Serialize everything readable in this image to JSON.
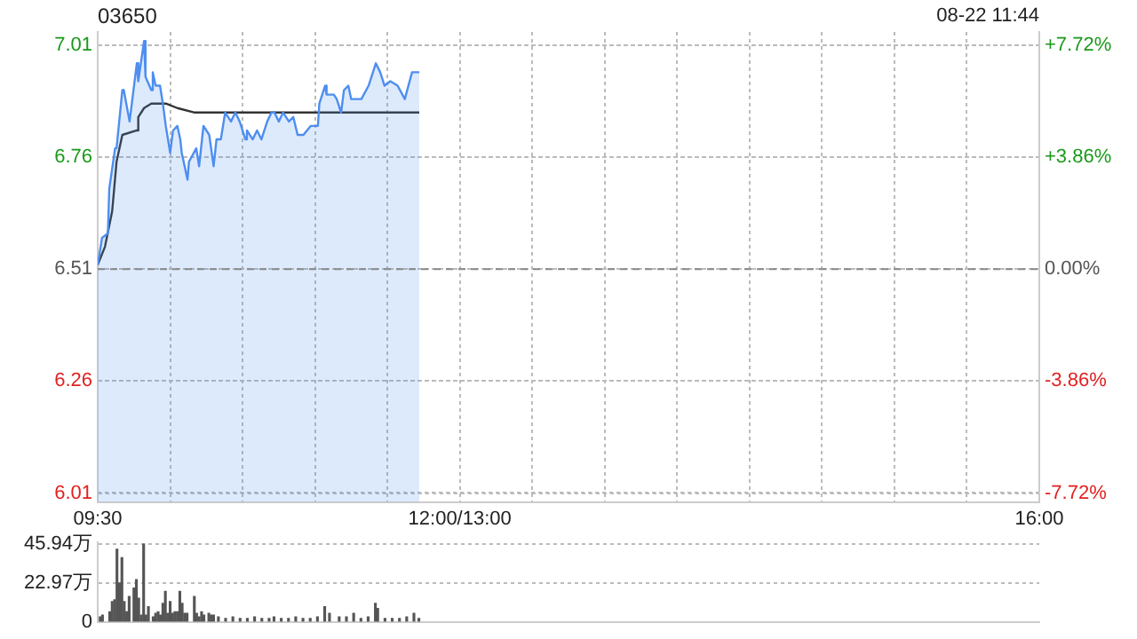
{
  "chart_data": [
    {
      "type": "area",
      "title": "03650",
      "annotations": [
        "08-22 11:44"
      ],
      "marker": "none",
      "legend": false,
      "grid": true,
      "xlim": [
        9.5,
        16
      ],
      "xticks": [
        {
          "value": 9.5,
          "label": "09:30"
        },
        {
          "value": 10,
          "label": null
        },
        {
          "value": 10.5,
          "label": null
        },
        {
          "value": 11,
          "label": null
        },
        {
          "value": 11.5,
          "label": null
        },
        {
          "value": 12,
          "label": "12:00/13:00"
        },
        {
          "value": 12.5,
          "label": null
        },
        {
          "value": 13,
          "label": null
        },
        {
          "value": 13.5,
          "label": null
        },
        {
          "value": 14,
          "label": null
        },
        {
          "value": 14.5,
          "label": null
        },
        {
          "value": 15,
          "label": null
        },
        {
          "value": 15.5,
          "label": null
        },
        {
          "value": 16,
          "label": "16:00"
        }
      ],
      "ylim": [
        5.99,
        7.04
      ],
      "yticks": [
        6.01,
        6.26,
        6.51,
        6.76,
        7.01
      ],
      "y2lim": [
        -8.03,
        8.18
      ],
      "y2ticks": [
        {
          "value": -7.72,
          "label": "-7.72%"
        },
        {
          "value": -3.86,
          "label": "-3.86%"
        },
        {
          "value": 0,
          "label": "0.00%"
        },
        {
          "value": 3.86,
          "label": "+3.86%"
        },
        {
          "value": 7.72,
          "label": "+7.72%"
        }
      ],
      "ref_lines": [
        {
          "axis": "y",
          "value": 6.51,
          "color": "#888888",
          "line_style": "dashed"
        }
      ],
      "series": [
        {
          "color": "#4d8ef0",
          "x": [
            9.5,
            9.53,
            9.57,
            9.58,
            9.62,
            9.63,
            9.67,
            9.68,
            9.72,
            9.77,
            9.78,
            9.82,
            9.83,
            9.87,
            9.88,
            9.9,
            9.93,
            9.95,
            9.97,
            10,
            10.02,
            10.05,
            10.07,
            10.08,
            10.12,
            10.13,
            10.18,
            10.2,
            10.23,
            10.27,
            10.3,
            10.32,
            10.35,
            10.38,
            10.42,
            10.45,
            10.48,
            10.52,
            10.53,
            10.57,
            10.6,
            10.63,
            10.67,
            10.7,
            10.72,
            10.75,
            10.78,
            10.82,
            10.85,
            10.88,
            10.92,
            10.97,
            11.02,
            11.03,
            11.07,
            11.08,
            11.13,
            11.15,
            11.18,
            11.2,
            11.23,
            11.25,
            11.32,
            11.37,
            11.42,
            11.45,
            11.48,
            11.52,
            11.57,
            11.62,
            11.67,
            11.72
          ],
          "values": [
            6.52,
            6.58,
            6.59,
            6.69,
            6.78,
            6.78,
            6.91,
            6.91,
            6.84,
            6.97,
            6.93,
            7.02,
            6.94,
            6.91,
            6.95,
            6.92,
            6.92,
            6.88,
            6.83,
            6.77,
            6.82,
            6.83,
            6.8,
            6.77,
            6.71,
            6.75,
            6.78,
            6.74,
            6.83,
            6.81,
            6.74,
            6.8,
            6.8,
            6.86,
            6.84,
            6.86,
            6.84,
            6.8,
            6.82,
            6.8,
            6.82,
            6.8,
            6.84,
            6.86,
            6.86,
            6.84,
            6.86,
            6.84,
            6.85,
            6.81,
            6.81,
            6.83,
            6.83,
            6.88,
            6.92,
            6.9,
            6.9,
            6.89,
            6.86,
            6.91,
            6.92,
            6.89,
            6.89,
            6.92,
            6.97,
            6.95,
            6.92,
            6.93,
            6.92,
            6.89,
            6.95,
            6.95
          ]
        },
        {
          "type": "line",
          "color": "#333333",
          "x": [
            9.5,
            9.55,
            9.6,
            9.63,
            9.67,
            9.77,
            9.78,
            9.82,
            9.87,
            9.97,
            10.05,
            10.17,
            10.38,
            10.83,
            11.02,
            11.33,
            11.45,
            11.72
          ],
          "values": [
            6.52,
            6.56,
            6.64,
            6.75,
            6.81,
            6.82,
            6.85,
            6.87,
            6.88,
            6.88,
            6.87,
            6.86,
            6.86,
            6.86,
            6.86,
            6.86,
            6.86,
            6.86
          ]
        }
      ]
    },
    {
      "type": "bar",
      "legend": false,
      "grid": "y",
      "tick_labels": "y",
      "xlim": [
        9.5,
        16
      ],
      "ylim": [
        0,
        47
      ],
      "yticks": [
        0,
        {
          "value": 22.97,
          "label": "22.97万"
        },
        {
          "value": 45.94,
          "label": "45.94万"
        }
      ],
      "series": [
        {
          "color": "#555555",
          "x": [
            9.517,
            9.533,
            9.583,
            9.6,
            9.617,
            9.633,
            9.65,
            9.667,
            9.683,
            9.7,
            9.717,
            9.75,
            9.767,
            9.783,
            9.8,
            9.817,
            9.833,
            9.85,
            9.883,
            9.9,
            9.917,
            9.933,
            9.95,
            9.967,
            9.983,
            10,
            10.017,
            10.033,
            10.05,
            10.067,
            10.083,
            10.1,
            10.117,
            10.167,
            10.183,
            10.2,
            10.217,
            10.233,
            10.267,
            10.283,
            10.3,
            10.333,
            10.383,
            10.433,
            10.483,
            10.533,
            10.583,
            10.633,
            10.683,
            10.717,
            10.767,
            10.817,
            10.867,
            10.917,
            10.967,
            11.017,
            11.067,
            11.1,
            11.167,
            11.217,
            11.267,
            11.317,
            11.367,
            11.417,
            11.433,
            11.483,
            11.533,
            11.583,
            11.633,
            11.683,
            11.717
          ],
          "values": [
            3,
            4,
            6,
            12,
            13,
            43,
            23,
            38,
            12,
            6,
            15,
            20,
            25,
            14,
            4,
            46,
            4,
            9,
            3,
            5,
            6,
            4,
            11,
            18,
            5,
            12,
            5,
            6,
            6,
            18,
            11,
            5,
            5,
            15,
            5,
            3,
            6,
            4,
            5,
            4,
            4,
            3,
            2,
            3,
            2,
            2,
            3,
            2,
            2,
            3,
            2,
            2,
            3,
            2,
            2,
            3,
            9,
            5,
            3,
            3,
            5,
            2,
            3,
            11,
            8,
            2,
            2,
            2,
            3,
            5,
            2
          ]
        }
      ]
    }
  ]
}
